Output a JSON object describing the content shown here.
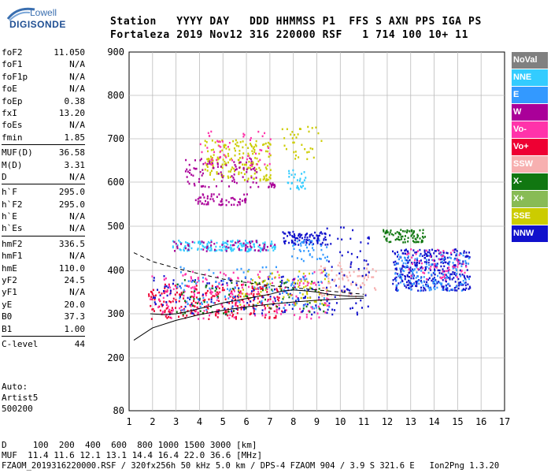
{
  "logo": {
    "line1": "Lowell",
    "line2": "DIGISONDE"
  },
  "header": {
    "labels": "Station   YYYY DAY   DDD HHMMSS P1  FFS S AXN PPS IGA PS",
    "values": "Fortaleza 2019 Nov12 316 220000 RSF   1 714 100 10+ 11"
  },
  "params": [
    {
      "name": "foF2",
      "value": "11.050"
    },
    {
      "name": "foF1",
      "value": "N/A"
    },
    {
      "name": "foF1p",
      "value": "N/A"
    },
    {
      "name": "foE",
      "value": "N/A"
    },
    {
      "name": "foEp",
      "value": "0.38"
    },
    {
      "name": "fxI",
      "value": "13.20"
    },
    {
      "name": "foEs",
      "value": "N/A"
    },
    {
      "name": "fmin",
      "value": "1.85"
    },
    {
      "name": "MUF(D)",
      "value": "36.58"
    },
    {
      "name": "M(D)",
      "value": "3.31"
    },
    {
      "name": "D",
      "value": "N/A"
    },
    {
      "name": "h`F",
      "value": "295.0"
    },
    {
      "name": "h`F2",
      "value": "295.0"
    },
    {
      "name": "h`E",
      "value": "N/A"
    },
    {
      "name": "h`Es",
      "value": "N/A"
    },
    {
      "name": "hmF2",
      "value": "336.5"
    },
    {
      "name": "hmF1",
      "value": "N/A"
    },
    {
      "name": "hmE",
      "value": "110.0"
    },
    {
      "name": "yF2",
      "value": "24.5"
    },
    {
      "name": "yF1",
      "value": "N/A"
    },
    {
      "name": "yE",
      "value": "20.0"
    },
    {
      "name": "B0",
      "value": "37.3"
    },
    {
      "name": "B1",
      "value": "1.00"
    },
    {
      "name": "C-level",
      "value": "44"
    }
  ],
  "auto": {
    "line1": "Auto:",
    "line2": "Artist5",
    "line3": "500200"
  },
  "legend": [
    {
      "label": "NoVal",
      "color": "#808080"
    },
    {
      "label": "NNE",
      "color": "#33ccff"
    },
    {
      "label": "E",
      "color": "#3399ff"
    },
    {
      "label": "W",
      "color": "#aa0099"
    },
    {
      "label": "Vo-",
      "color": "#ff33aa"
    },
    {
      "label": "Vo+",
      "color": "#ee0033"
    },
    {
      "label": "SSW",
      "color": "#f7b0b0"
    },
    {
      "label": "X-",
      "color": "#117711"
    },
    {
      "label": "X+",
      "color": "#88bb55"
    },
    {
      "label": "SSE",
      "color": "#cccc00"
    },
    {
      "label": "NNW",
      "color": "#1111cc"
    }
  ],
  "bottom": {
    "d_line": "D     100  200  400  600  800 1000 1500 3000 [km]",
    "muf_line": "MUF  11.4 11.6 12.1 13.1 14.4 16.4 22.0 36.6 [MHz]",
    "footer": "FZAOM_2019316220000.RSF / 320fx256h 50 kHz 5.0 km / DPS-4 FZAOM 904 / 3.9 S 321.6 E   Ion2Png 1.3.20"
  },
  "chart_data": {
    "type": "scatter",
    "xlim": [
      1,
      17
    ],
    "ylim": [
      80,
      900
    ],
    "xticks": [
      "1",
      "2",
      "3",
      "4",
      "5",
      "6",
      "7",
      "8",
      "9",
      "10",
      "11",
      "12",
      "13",
      "14",
      "15",
      "16",
      "17"
    ],
    "yticks": [
      "80",
      "200",
      "300",
      "400",
      "500",
      "600",
      "700",
      "800",
      "900"
    ],
    "grid": true,
    "clusters": [
      {
        "color": "#ee0033",
        "x": [
          1.8,
          7.5
        ],
        "y": [
          290,
          370
        ],
        "n": 260
      },
      {
        "color": "#ff33aa",
        "x": [
          1.8,
          9.5
        ],
        "y": [
          290,
          400
        ],
        "n": 200
      },
      {
        "color": "#1111cc",
        "x": [
          2,
          9.3
        ],
        "y": [
          300,
          390
        ],
        "n": 120
      },
      {
        "color": "#3399ff",
        "x": [
          3,
          9.5
        ],
        "y": [
          310,
          410
        ],
        "n": 120
      },
      {
        "color": "#117711",
        "x": [
          3,
          9.5
        ],
        "y": [
          300,
          380
        ],
        "n": 70
      },
      {
        "color": "#cccc00",
        "x": [
          5.5,
          9.5
        ],
        "y": [
          320,
          400
        ],
        "n": 70
      },
      {
        "color": "#f7b0b0",
        "x": [
          9,
          11.5
        ],
        "y": [
          340,
          420
        ],
        "n": 80
      },
      {
        "color": "#33ccff",
        "x": [
          2.8,
          7.2
        ],
        "y": [
          445,
          470
        ],
        "n": 160
      },
      {
        "color": "#aa0099",
        "x": [
          2.8,
          7.2
        ],
        "y": [
          445,
          470
        ],
        "n": 60
      },
      {
        "color": "#1111cc",
        "x": [
          7.5,
          9.4
        ],
        "y": [
          460,
          490
        ],
        "n": 90
      },
      {
        "color": "#3399ff",
        "x": [
          7.8,
          9.5
        ],
        "y": [
          420,
          470
        ],
        "n": 40
      },
      {
        "color": "#1111cc",
        "x": [
          9.3,
          11.2
        ],
        "y": [
          300,
          500
        ],
        "n": 70
      },
      {
        "color": "#1111cc",
        "x": [
          12.2,
          15.5
        ],
        "y": [
          355,
          450
        ],
        "n": 330
      },
      {
        "color": "#3399ff",
        "x": [
          12.3,
          15.5
        ],
        "y": [
          355,
          440
        ],
        "n": 140
      },
      {
        "color": "#ff33aa",
        "x": [
          12.8,
          15.4
        ],
        "y": [
          380,
          450
        ],
        "n": 60
      },
      {
        "color": "#117711",
        "x": [
          11.8,
          13.6
        ],
        "y": [
          465,
          495
        ],
        "n": 80
      },
      {
        "color": "#cccc00",
        "x": [
          4.2,
          7
        ],
        "y": [
          605,
          700
        ],
        "n": 180
      },
      {
        "color": "#aa0099",
        "x": [
          3.3,
          6.5
        ],
        "y": [
          590,
          660
        ],
        "n": 90
      },
      {
        "color": "#ff33aa",
        "x": [
          4,
          7
        ],
        "y": [
          640,
          720
        ],
        "n": 50
      },
      {
        "color": "#cccc00",
        "x": [
          7.5,
          9.2
        ],
        "y": [
          650,
          730
        ],
        "n": 35
      },
      {
        "color": "#aa0099",
        "x": [
          3.8,
          6
        ],
        "y": [
          550,
          575
        ],
        "n": 60
      },
      {
        "color": "#33ccff",
        "x": [
          7.7,
          8.5
        ],
        "y": [
          585,
          630
        ],
        "n": 30
      },
      {
        "color": "#aa0099",
        "x": [
          6.8,
          7.3
        ],
        "y": [
          590,
          600
        ],
        "n": 15
      }
    ],
    "lines": [
      {
        "style": "dashed",
        "color": "#000000",
        "points": [
          [
            1.2,
            440
          ],
          [
            2,
            420
          ],
          [
            3,
            405
          ],
          [
            4,
            392
          ],
          [
            5,
            380
          ],
          [
            6,
            372
          ],
          [
            7,
            365
          ],
          [
            8,
            360
          ],
          [
            9,
            355
          ],
          [
            10,
            350
          ],
          [
            11,
            345
          ]
        ]
      },
      {
        "style": "solid",
        "color": "#000000",
        "points": [
          [
            1.2,
            240
          ],
          [
            2,
            268
          ],
          [
            3,
            285
          ],
          [
            4,
            298
          ],
          [
            5,
            308
          ],
          [
            6,
            316
          ],
          [
            7,
            322
          ],
          [
            8,
            327
          ],
          [
            9,
            331
          ],
          [
            10,
            334
          ],
          [
            11,
            336
          ]
        ]
      },
      {
        "style": "solid",
        "color": "#000000",
        "points": [
          [
            1.9,
            300
          ],
          [
            2.5,
            298
          ],
          [
            3,
            300
          ],
          [
            3.5,
            305
          ],
          [
            4,
            312
          ],
          [
            4.5,
            318
          ],
          [
            5,
            325
          ],
          [
            5.5,
            330
          ],
          [
            6,
            335
          ],
          [
            6.5,
            340
          ],
          [
            7,
            345
          ],
          [
            7.5,
            352
          ],
          [
            8,
            355
          ],
          [
            8.5,
            353
          ],
          [
            9,
            350
          ],
          [
            9.5,
            345
          ],
          [
            10,
            342
          ],
          [
            10.5,
            340
          ],
          [
            11,
            340
          ]
        ]
      }
    ]
  }
}
